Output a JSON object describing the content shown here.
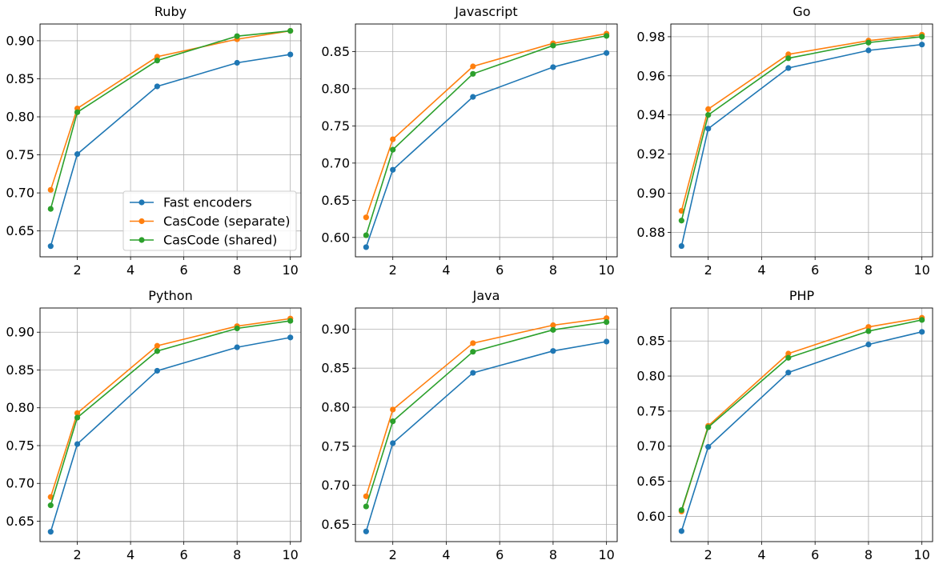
{
  "colors": {
    "fast": "#1f77b4",
    "separate": "#ff7f0e",
    "shared": "#2ca02c",
    "grid": "#b0b0b0"
  },
  "legend": {
    "placement": "lower-right",
    "entries": [
      "Fast encoders",
      "CasCode (separate)",
      "CasCode (shared)"
    ]
  },
  "chart_data": [
    {
      "type": "line",
      "title": "Ruby",
      "x": [
        1,
        2,
        5,
        8,
        10
      ],
      "xlim": [
        0.6,
        10.4
      ],
      "ylim": [
        0.616,
        0.922
      ],
      "xticks": [
        "2",
        "4",
        "6",
        "8",
        "10"
      ],
      "yticks": [
        "0.65",
        "0.70",
        "0.75",
        "0.80",
        "0.85",
        "0.90"
      ],
      "grid": true,
      "legend": true,
      "series": [
        {
          "name": "Fast encoders",
          "values": [
            0.63,
            0.751,
            0.84,
            0.871,
            0.882
          ]
        },
        {
          "name": "CasCode (separate)",
          "values": [
            0.704,
            0.811,
            0.879,
            0.902,
            0.913
          ]
        },
        {
          "name": "CasCode (shared)",
          "values": [
            0.679,
            0.806,
            0.874,
            0.906,
            0.913
          ]
        }
      ]
    },
    {
      "type": "line",
      "title": "Javascript",
      "x": [
        1,
        2,
        5,
        8,
        10
      ],
      "xlim": [
        0.6,
        10.4
      ],
      "ylim": [
        0.574,
        0.887
      ],
      "xticks": [
        "2",
        "4",
        "6",
        "8",
        "10"
      ],
      "yticks": [
        "0.60",
        "0.65",
        "0.70",
        "0.75",
        "0.80",
        "0.85"
      ],
      "grid": true,
      "legend": false,
      "series": [
        {
          "name": "Fast encoders",
          "values": [
            0.587,
            0.691,
            0.789,
            0.829,
            0.848
          ]
        },
        {
          "name": "CasCode (separate)",
          "values": [
            0.627,
            0.732,
            0.83,
            0.861,
            0.874
          ]
        },
        {
          "name": "CasCode (shared)",
          "values": [
            0.603,
            0.718,
            0.82,
            0.858,
            0.871
          ]
        }
      ]
    },
    {
      "type": "line",
      "title": "Go",
      "x": [
        1,
        2,
        5,
        8,
        10
      ],
      "xlim": [
        0.6,
        10.4
      ],
      "ylim": [
        0.8675,
        0.9865
      ],
      "xticks": [
        "2",
        "4",
        "6",
        "8",
        "10"
      ],
      "yticks": [
        "0.88",
        "0.90",
        "0.92",
        "0.94",
        "0.96",
        "0.98"
      ],
      "grid": true,
      "legend": false,
      "series": [
        {
          "name": "Fast encoders",
          "values": [
            0.873,
            0.933,
            0.964,
            0.973,
            0.976
          ]
        },
        {
          "name": "CasCode (separate)",
          "values": [
            0.891,
            0.943,
            0.971,
            0.978,
            0.981
          ]
        },
        {
          "name": "CasCode (shared)",
          "values": [
            0.886,
            0.94,
            0.969,
            0.977,
            0.98
          ]
        }
      ]
    },
    {
      "type": "line",
      "title": "Python",
      "x": [
        1,
        2,
        5,
        8,
        10
      ],
      "xlim": [
        0.6,
        10.4
      ],
      "ylim": [
        0.623,
        0.932
      ],
      "xticks": [
        "2",
        "4",
        "6",
        "8",
        "10"
      ],
      "yticks": [
        "0.65",
        "0.70",
        "0.75",
        "0.80",
        "0.85",
        "0.90"
      ],
      "grid": true,
      "legend": false,
      "series": [
        {
          "name": "Fast encoders",
          "values": [
            0.636,
            0.752,
            0.849,
            0.88,
            0.893
          ]
        },
        {
          "name": "CasCode (separate)",
          "values": [
            0.682,
            0.793,
            0.882,
            0.908,
            0.918
          ]
        },
        {
          "name": "CasCode (shared)",
          "values": [
            0.671,
            0.787,
            0.875,
            0.905,
            0.915
          ]
        }
      ]
    },
    {
      "type": "line",
      "title": "Java",
      "x": [
        1,
        2,
        5,
        8,
        10
      ],
      "xlim": [
        0.6,
        10.4
      ],
      "ylim": [
        0.628,
        0.927
      ],
      "xticks": [
        "2",
        "4",
        "6",
        "8",
        "10"
      ],
      "yticks": [
        "0.65",
        "0.70",
        "0.75",
        "0.80",
        "0.85",
        "0.90"
      ],
      "grid": true,
      "legend": false,
      "series": [
        {
          "name": "Fast encoders",
          "values": [
            0.641,
            0.754,
            0.844,
            0.872,
            0.884
          ]
        },
        {
          "name": "CasCode (separate)",
          "values": [
            0.686,
            0.797,
            0.882,
            0.905,
            0.914
          ]
        },
        {
          "name": "CasCode (shared)",
          "values": [
            0.673,
            0.782,
            0.871,
            0.899,
            0.909
          ]
        }
      ]
    },
    {
      "type": "line",
      "title": "PHP",
      "x": [
        1,
        2,
        5,
        8,
        10
      ],
      "xlim": [
        0.6,
        10.4
      ],
      "ylim": [
        0.564,
        0.897
      ],
      "xticks": [
        "2",
        "4",
        "6",
        "8",
        "10"
      ],
      "yticks": [
        "0.60",
        "0.65",
        "0.70",
        "0.75",
        "0.80",
        "0.85"
      ],
      "grid": true,
      "legend": false,
      "series": [
        {
          "name": "Fast encoders",
          "values": [
            0.579,
            0.699,
            0.805,
            0.845,
            0.863
          ]
        },
        {
          "name": "CasCode (separate)",
          "values": [
            0.607,
            0.729,
            0.832,
            0.87,
            0.883
          ]
        },
        {
          "name": "CasCode (shared)",
          "values": [
            0.609,
            0.727,
            0.826,
            0.864,
            0.88
          ]
        }
      ]
    }
  ]
}
